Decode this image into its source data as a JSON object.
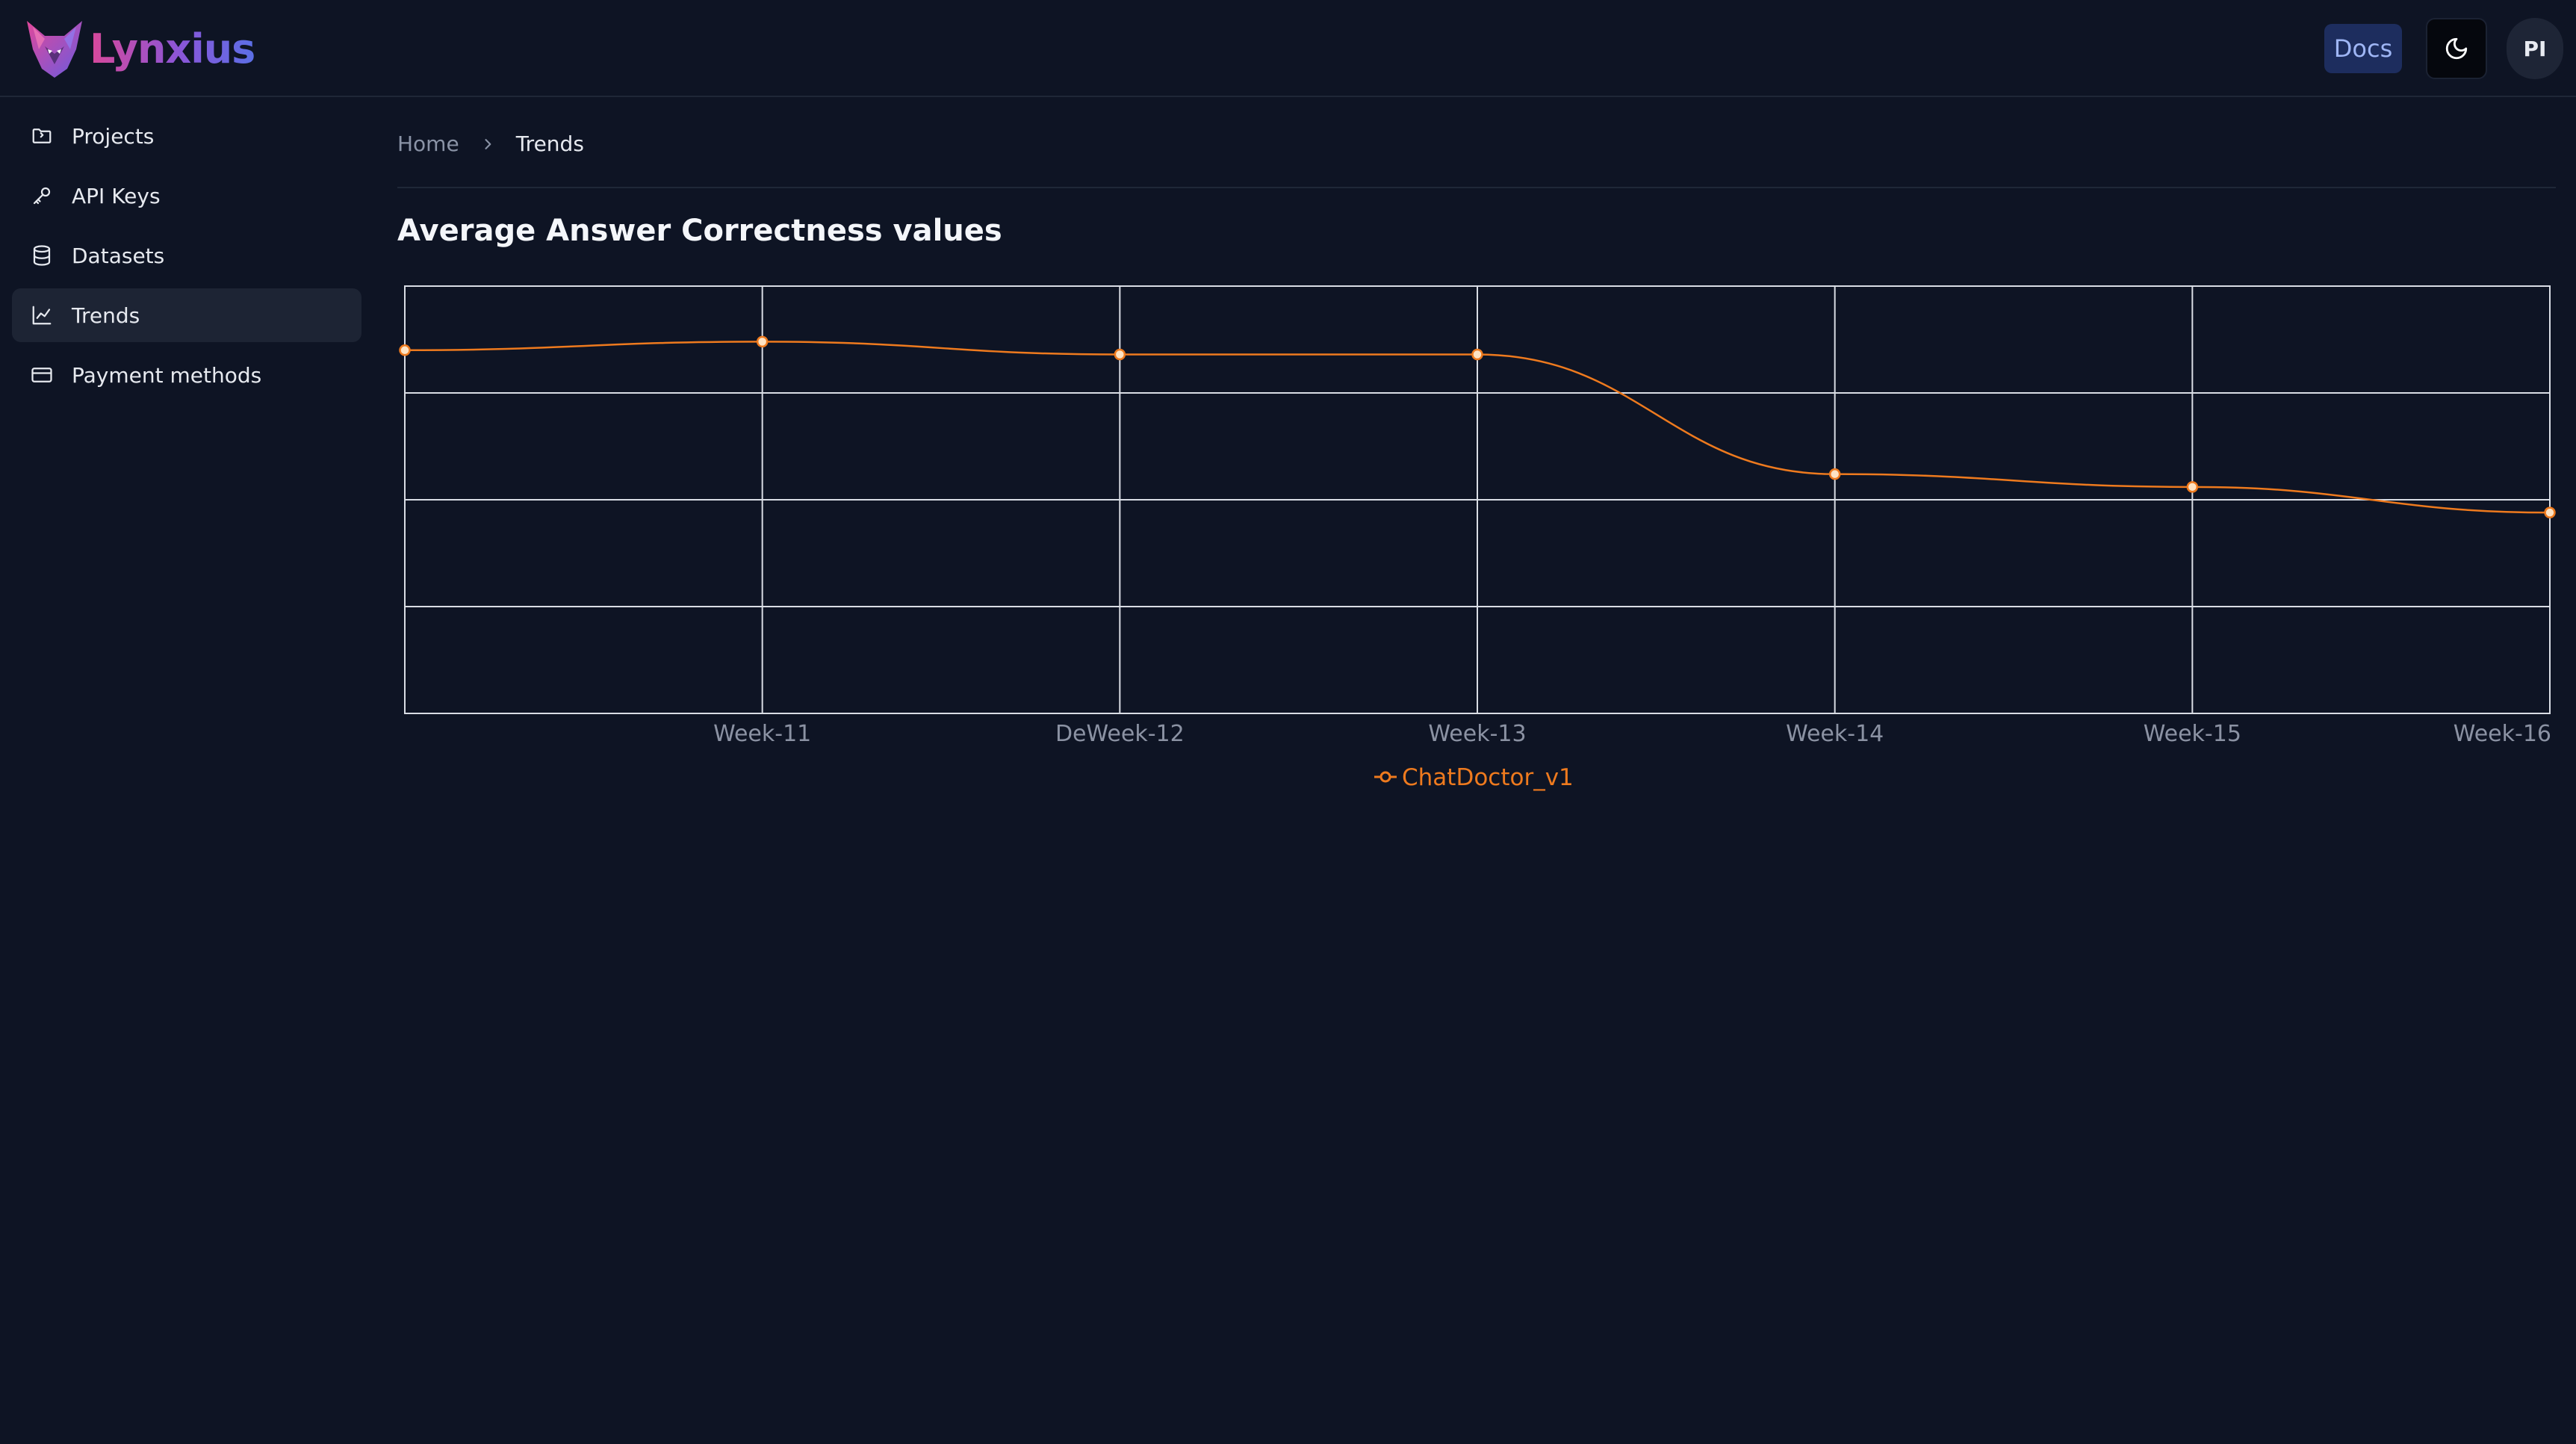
{
  "app": {
    "name": "Lynxius",
    "logo_icon": "lynx-logo-icon"
  },
  "header": {
    "docs_label": "Docs",
    "theme_icon": "moon-icon",
    "avatar_initials": "PI"
  },
  "sidebar": {
    "items": [
      {
        "label": "Projects",
        "icon": "folder-icon",
        "active": false
      },
      {
        "label": "API Keys",
        "icon": "key-icon",
        "active": false
      },
      {
        "label": "Datasets",
        "icon": "database-icon",
        "active": false
      },
      {
        "label": "Trends",
        "icon": "line-chart-icon",
        "active": true
      },
      {
        "label": "Payment methods",
        "icon": "credit-card-icon",
        "active": false
      }
    ]
  },
  "breadcrumb": {
    "home": "Home",
    "current": "Trends"
  },
  "page": {
    "title": "Average Answer Correctness values"
  },
  "colors": {
    "background": "#0e1424",
    "series": "#ee7a1e",
    "grid": "#d9dde5",
    "accent_docs": "#1d2d5e"
  },
  "chart_data": {
    "type": "line",
    "title": "",
    "xlabel": "",
    "ylabel": "",
    "x": [
      "",
      "Week-11",
      "DeWeek-12",
      "Week-13",
      "Week-14",
      "Week-15",
      "Week-16"
    ],
    "ylim": [
      0,
      1
    ],
    "y_ticks_shown": false,
    "grid": true,
    "legend_position": "bottom",
    "series": [
      {
        "name": "ChatDoctor_v1",
        "color": "#ee7a1e",
        "values": [
          0.85,
          0.87,
          0.84,
          0.84,
          0.56,
          0.53,
          0.47
        ]
      }
    ]
  }
}
